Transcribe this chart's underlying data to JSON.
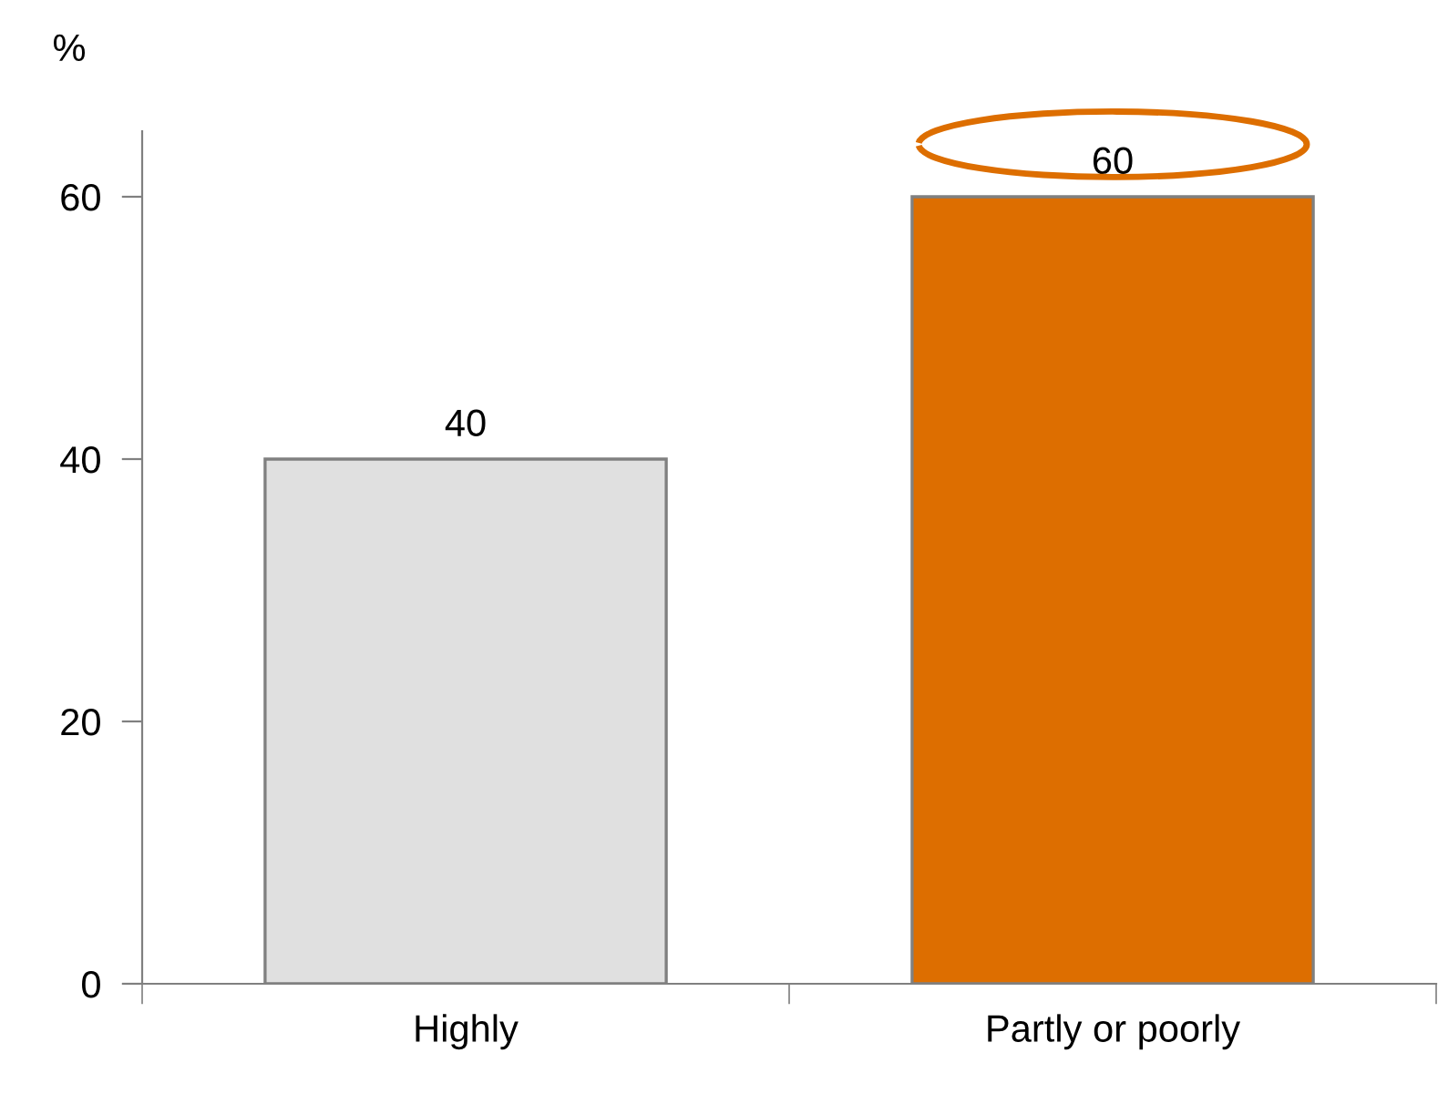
{
  "chart_data": {
    "type": "bar",
    "ylabel": "%",
    "categories": [
      "Highly",
      "Partly or poorly"
    ],
    "values": [
      40,
      60
    ],
    "colors": [
      "#e0e0e0",
      "#dd6e00"
    ],
    "ylim": [
      0,
      65
    ],
    "yticks": [
      0,
      20,
      40,
      60
    ],
    "data_labels": true,
    "grid": false,
    "legend": false
  }
}
